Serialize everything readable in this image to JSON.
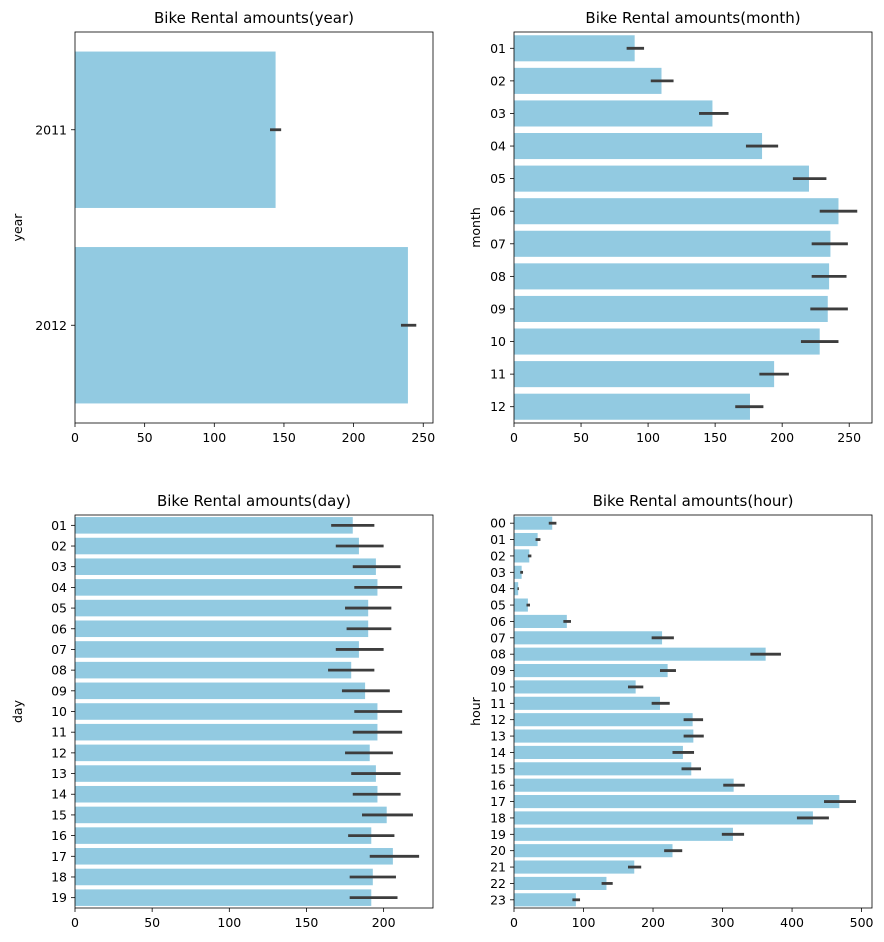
{
  "colors": {
    "bar": "#92cae1",
    "errorbar": "#3d3d3d",
    "axis": "#000000"
  },
  "chart_data": [
    {
      "id": "year",
      "type": "bar",
      "orientation": "horizontal",
      "title": "Bike Rental amounts(year)",
      "xlabel": "",
      "ylabel": "year",
      "categories": [
        "2011",
        "2012"
      ],
      "values": [
        144,
        239
      ],
      "ci": [
        [
          140,
          148
        ],
        [
          234,
          245
        ]
      ],
      "xlim": [
        0,
        257
      ],
      "xticks": [
        0,
        50,
        100,
        150,
        200,
        250
      ]
    },
    {
      "id": "month",
      "type": "bar",
      "orientation": "horizontal",
      "title": "Bike Rental amounts(month)",
      "xlabel": "",
      "ylabel": "month",
      "categories": [
        "01",
        "02",
        "03",
        "04",
        "05",
        "06",
        "07",
        "08",
        "09",
        "10",
        "11",
        "12"
      ],
      "values": [
        90,
        110,
        148,
        185,
        220,
        242,
        236,
        235,
        234,
        228,
        194,
        176
      ],
      "ci": [
        [
          84,
          97
        ],
        [
          102,
          119
        ],
        [
          138,
          160
        ],
        [
          173,
          197
        ],
        [
          208,
          233
        ],
        [
          228,
          256
        ],
        [
          222,
          249
        ],
        [
          222,
          248
        ],
        [
          221,
          249
        ],
        [
          214,
          242
        ],
        [
          183,
          205
        ],
        [
          165,
          186
        ]
      ],
      "xlim": [
        0,
        267
      ],
      "xticks": [
        0,
        50,
        100,
        150,
        200,
        250
      ]
    },
    {
      "id": "day",
      "type": "bar",
      "orientation": "horizontal",
      "title": "Bike Rental amounts(day)",
      "xlabel": "",
      "ylabel": "day",
      "categories": [
        "01",
        "02",
        "03",
        "04",
        "05",
        "06",
        "07",
        "08",
        "09",
        "10",
        "11",
        "12",
        "13",
        "14",
        "15",
        "16",
        "17",
        "18",
        "19"
      ],
      "values": [
        180,
        184,
        195,
        196,
        190,
        190,
        184,
        179,
        188,
        196,
        196,
        191,
        195,
        196,
        202,
        192,
        206,
        193,
        192
      ],
      "ci": [
        [
          166,
          194
        ],
        [
          169,
          200
        ],
        [
          180,
          211
        ],
        [
          181,
          212
        ],
        [
          175,
          205
        ],
        [
          176,
          205
        ],
        [
          169,
          200
        ],
        [
          164,
          194
        ],
        [
          173,
          204
        ],
        [
          181,
          212
        ],
        [
          180,
          212
        ],
        [
          175,
          206
        ],
        [
          179,
          211
        ],
        [
          180,
          211
        ],
        [
          186,
          219
        ],
        [
          177,
          207
        ],
        [
          191,
          223
        ],
        [
          178,
          208
        ],
        [
          178,
          209
        ]
      ],
      "xlim": [
        0,
        232
      ],
      "xticks": [
        0,
        50,
        100,
        150,
        200
      ]
    },
    {
      "id": "hour",
      "type": "bar",
      "orientation": "horizontal",
      "title": "Bike Rental amounts(hour)",
      "xlabel": "",
      "ylabel": "hour",
      "categories": [
        "00",
        "01",
        "02",
        "03",
        "04",
        "05",
        "06",
        "07",
        "08",
        "09",
        "10",
        "11",
        "12",
        "13",
        "14",
        "15",
        "16",
        "17",
        "18",
        "19",
        "20",
        "21",
        "22",
        "23"
      ],
      "values": [
        55,
        34,
        22,
        11,
        6,
        20,
        76,
        213,
        362,
        221,
        175,
        210,
        257,
        258,
        243,
        255,
        316,
        468,
        430,
        315,
        228,
        173,
        133,
        89
      ],
      "ci": [
        [
          50,
          61
        ],
        [
          31,
          38
        ],
        [
          20,
          25
        ],
        [
          9,
          13
        ],
        [
          5,
          7
        ],
        [
          18,
          23
        ],
        [
          71,
          82
        ],
        [
          198,
          230
        ],
        [
          340,
          384
        ],
        [
          210,
          233
        ],
        [
          164,
          186
        ],
        [
          198,
          224
        ],
        [
          244,
          272
        ],
        [
          244,
          273
        ],
        [
          228,
          259
        ],
        [
          241,
          269
        ],
        [
          301,
          332
        ],
        [
          446,
          492
        ],
        [
          407,
          453
        ],
        [
          299,
          331
        ],
        [
          216,
          242
        ],
        [
          164,
          183
        ],
        [
          126,
          142
        ],
        [
          84,
          95
        ]
      ],
      "xlim": [
        0,
        515
      ],
      "xticks": [
        0,
        100,
        200,
        300,
        400,
        500
      ]
    }
  ]
}
